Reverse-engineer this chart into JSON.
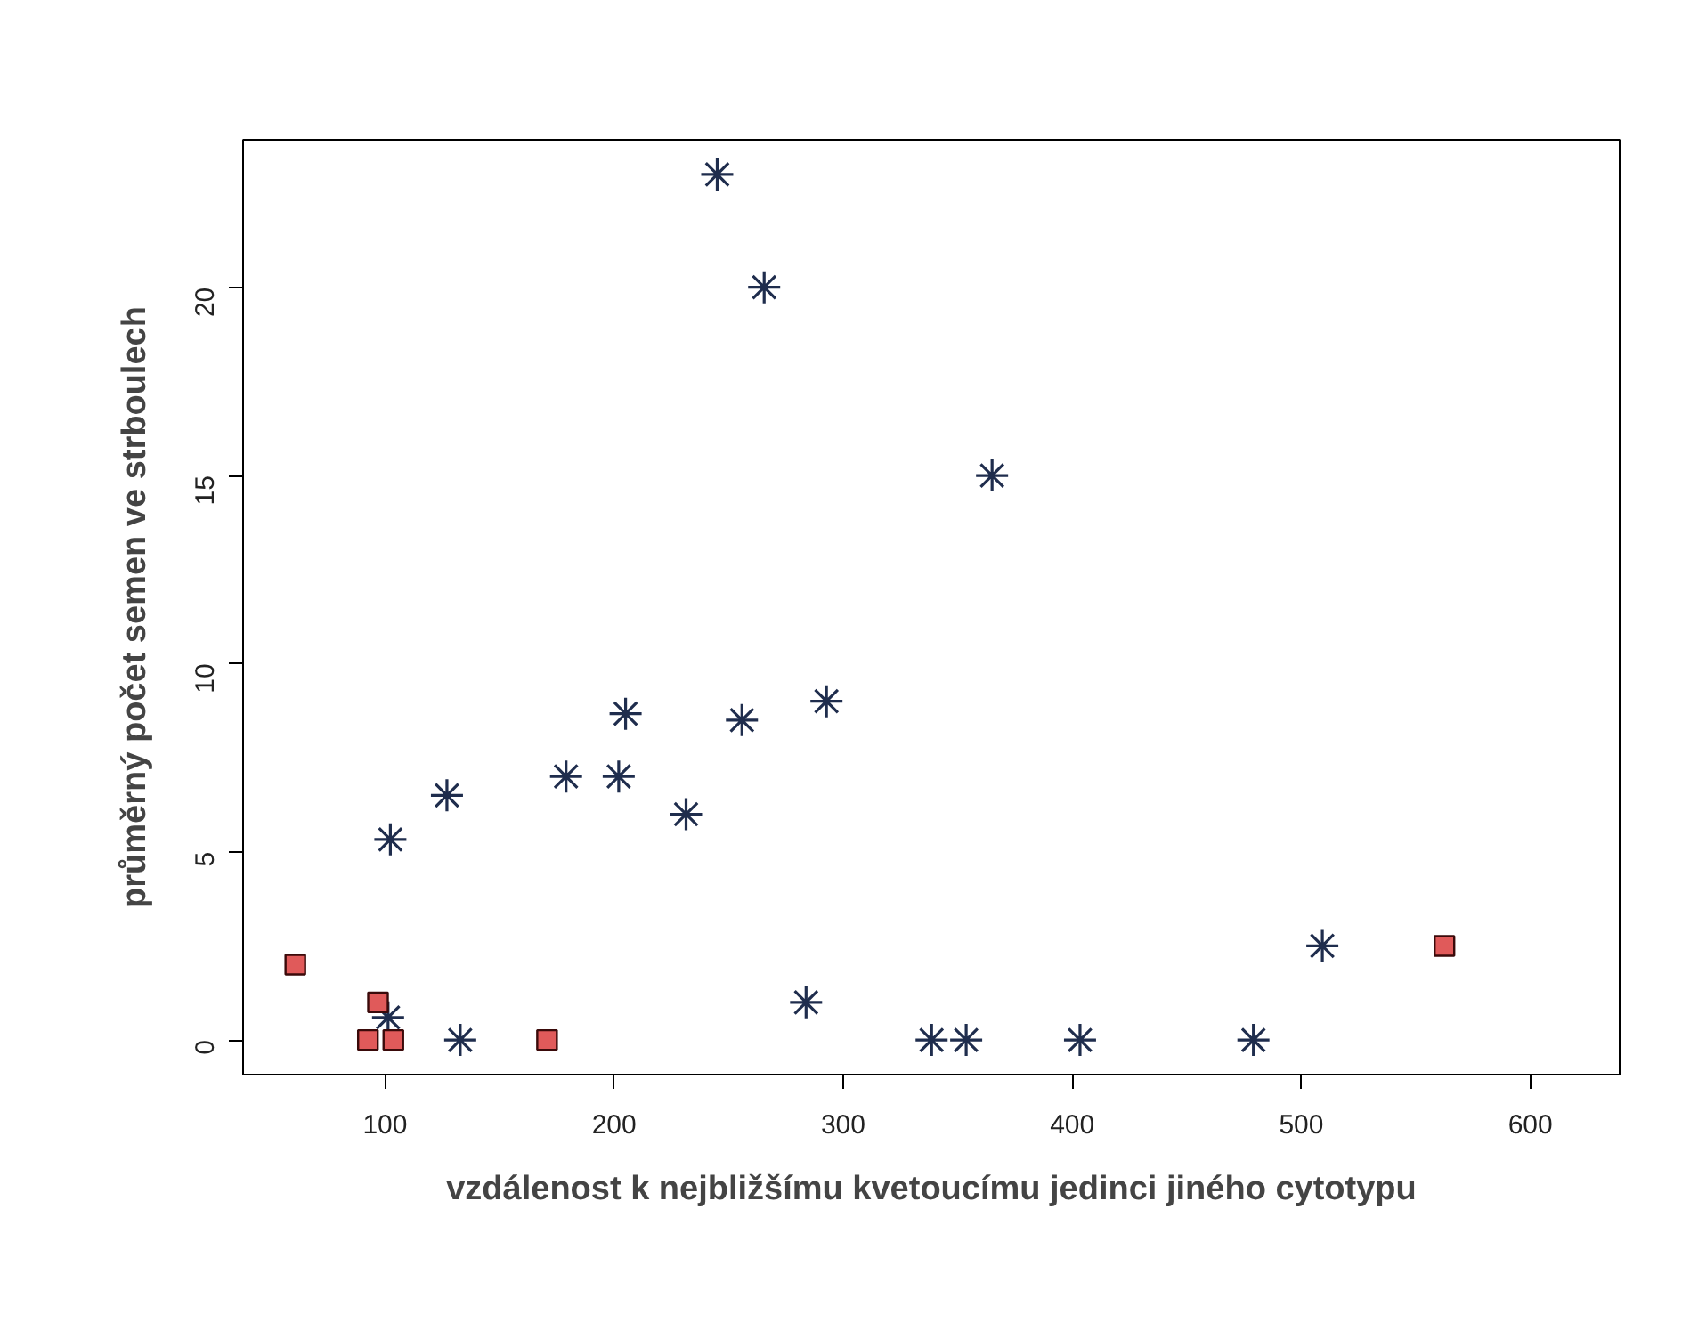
{
  "chart_data": {
    "type": "scatter",
    "xlabel": "vzdálenost k nejbližšímu kvetoucímu jedinci jiného cytotypu",
    "ylabel": "průměrný počet semen ve strboulech",
    "xlim": [
      38,
      639
    ],
    "ylim": [
      -0.92,
      23.92
    ],
    "xticks": [
      100,
      200,
      300,
      400,
      500,
      600
    ],
    "yticks": [
      0,
      5,
      10,
      15,
      20
    ],
    "grid": false,
    "series": [
      {
        "color": "#1f2d4d",
        "marker": "cross",
        "x": [
          245,
          265.5,
          365,
          292.7,
          102.3,
          127,
          179,
          202,
          231.4,
          205,
          255.8,
          283.8,
          132.8,
          101.3,
          338.6,
          353.7,
          403.4,
          479.1,
          509.2
        ],
        "values": [
          23,
          20,
          15,
          9,
          5.33,
          6.5,
          7,
          7,
          6,
          8.67,
          8.5,
          1,
          0,
          0.6,
          0,
          0,
          0,
          0,
          2.5
        ]
      },
      {
        "color": "#e05a5a",
        "marker": "square",
        "x": [
          60.8,
          96.9,
          92.5,
          103.6,
          170.7,
          562.5
        ],
        "values": [
          2,
          1,
          0,
          0,
          0,
          2.5
        ]
      }
    ]
  }
}
